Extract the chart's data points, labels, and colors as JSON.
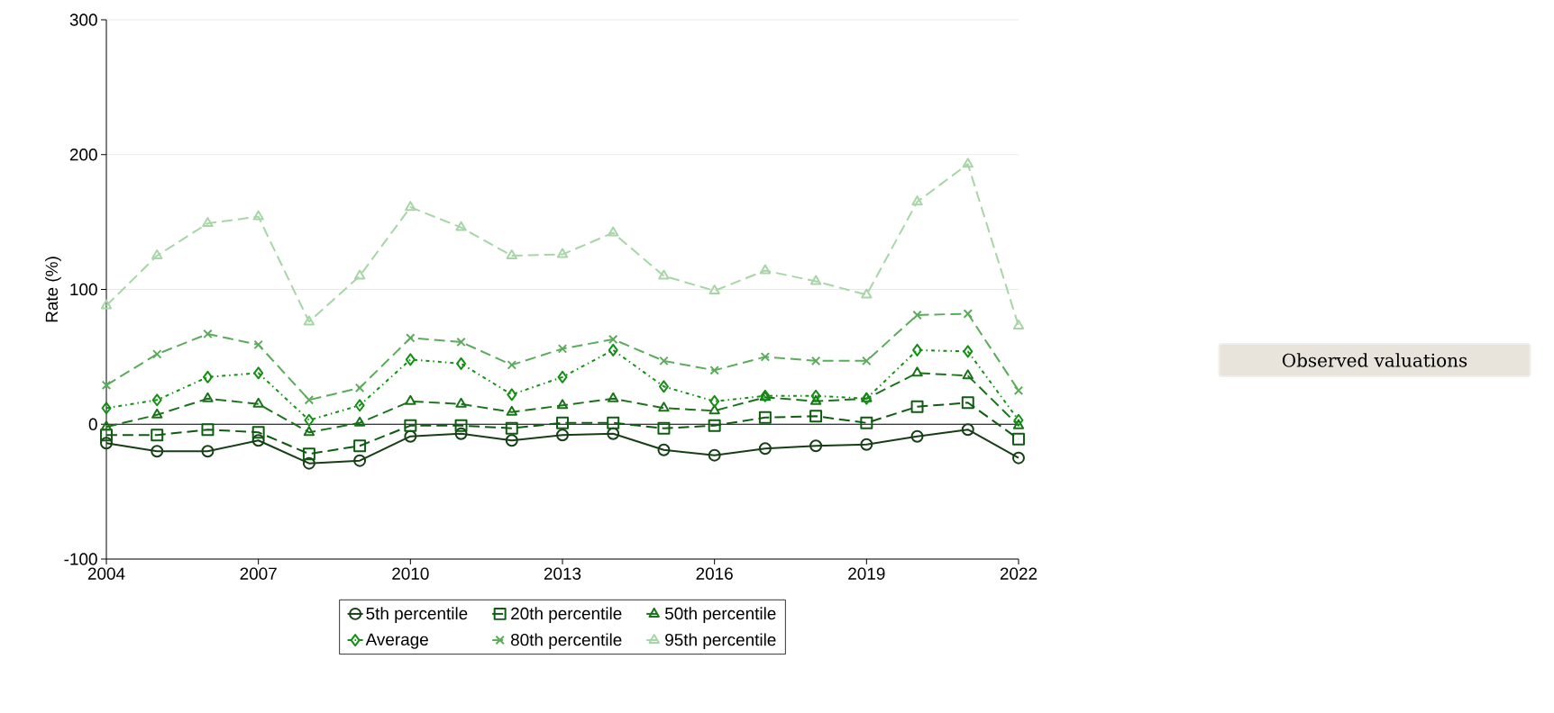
{
  "chart_data": {
    "type": "line",
    "ylabel": "Rate (%)",
    "x": [
      2004,
      2005,
      2006,
      2007,
      2008,
      2009,
      2010,
      2011,
      2012,
      2013,
      2014,
      2015,
      2016,
      2017,
      2018,
      2019,
      2020,
      2021,
      2022
    ],
    "xlim": [
      2004,
      2022
    ],
    "xticks": [
      2004,
      2007,
      2010,
      2013,
      2016,
      2019,
      2022
    ],
    "ylim": [
      -100,
      300
    ],
    "yticks": [
      -100,
      0,
      100,
      200,
      300
    ],
    "grid": "y",
    "legend": "bottom",
    "ref_lines": [
      {
        "axis": "y",
        "value": 0,
        "color": "#000000",
        "line_style": "solid"
      }
    ],
    "annotations": [
      "Observed valuations"
    ],
    "series": [
      {
        "name": "5th percentile",
        "color": "#163f16",
        "marker": "circle",
        "line_style": "solid",
        "values": [
          -14,
          -20,
          -20,
          -12,
          -29,
          -27,
          -9,
          -7,
          -12,
          -8,
          -7,
          -19,
          -23,
          -18,
          -16,
          -15,
          -9,
          -4,
          -25
        ]
      },
      {
        "name": "20th percentile",
        "color": "#0e5c10",
        "marker": "square",
        "line_style": "dashed",
        "values": [
          -8,
          -8,
          -4,
          -6,
          -22,
          -16,
          -1,
          -1,
          -3,
          1,
          1,
          -3,
          -1,
          5,
          6,
          1,
          13,
          16,
          -11
        ]
      },
      {
        "name": "50th percentile",
        "color": "#1a731a",
        "marker": "triangle",
        "line_style": "dashed",
        "values": [
          -2,
          7,
          19,
          15,
          -6,
          1,
          17,
          15,
          9,
          14,
          19,
          12,
          10,
          20,
          17,
          19,
          38,
          36,
          -1
        ]
      },
      {
        "name": "Average",
        "color": "#139013",
        "marker": "diamond",
        "line_style": "dotted",
        "values": [
          12,
          18,
          35,
          38,
          3,
          14,
          48,
          45,
          22,
          35,
          55,
          28,
          17,
          21,
          21,
          19,
          55,
          54,
          3
        ]
      },
      {
        "name": "80th percentile",
        "color": "#5aac5a",
        "marker": "cross",
        "line_style": "dashed",
        "values": [
          29,
          52,
          67,
          59,
          18,
          27,
          64,
          61,
          44,
          56,
          63,
          47,
          40,
          50,
          47,
          47,
          81,
          82,
          25
        ]
      },
      {
        "name": "95th percentile",
        "color": "#a6d6a6",
        "marker": "triangle",
        "line_style": "dashed",
        "values": [
          88,
          125,
          149,
          154,
          76,
          110,
          161,
          146,
          125,
          126,
          142,
          110,
          99,
          114,
          106,
          96,
          165,
          193,
          73
        ]
      }
    ]
  }
}
